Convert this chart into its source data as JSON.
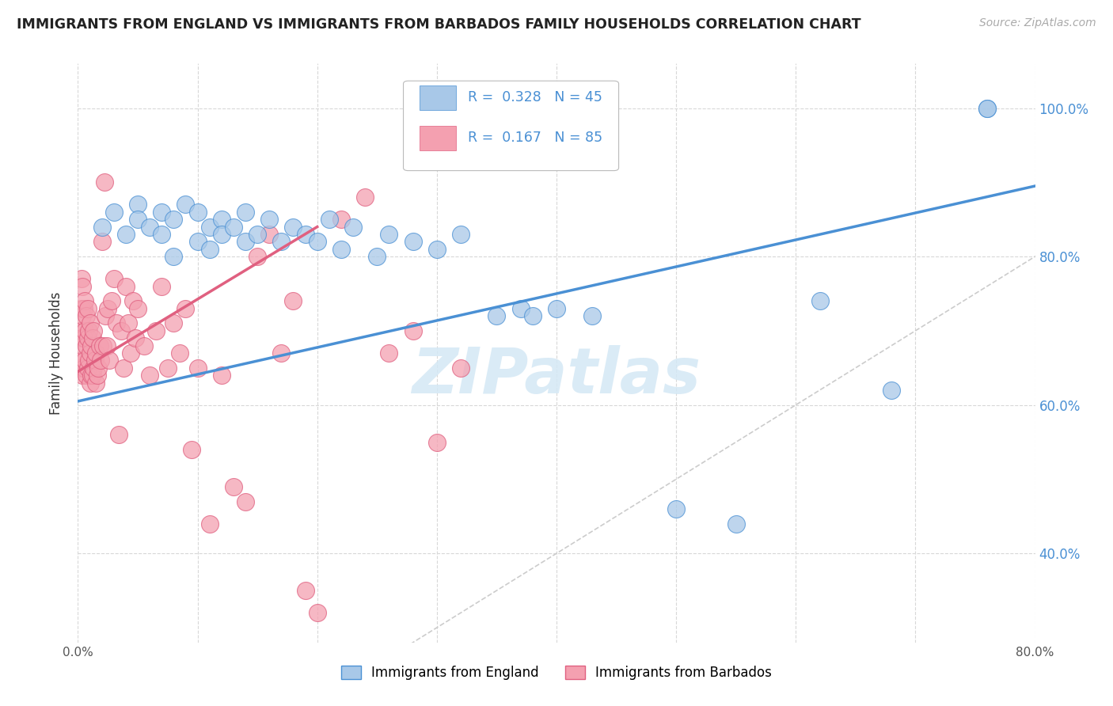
{
  "title": "IMMIGRANTS FROM ENGLAND VS IMMIGRANTS FROM BARBADOS FAMILY HOUSEHOLDS CORRELATION CHART",
  "source": "Source: ZipAtlas.com",
  "ylabel": "Family Households",
  "legend_bottom": [
    "Immigrants from England",
    "Immigrants from Barbados"
  ],
  "england_R": "0.328",
  "england_N": "45",
  "barbados_R": "0.167",
  "barbados_N": "85",
  "xlim": [
    0.0,
    0.8
  ],
  "ylim": [
    0.28,
    1.06
  ],
  "england_color": "#a8c8e8",
  "barbados_color": "#f4a0b0",
  "england_line_color": "#4a90d4",
  "barbados_line_color": "#e06080",
  "diagonal_color": "#cccccc",
  "background_color": "#ffffff",
  "grid_color": "#d8d8d8",
  "watermark_color": "#d4e8f5",
  "england_x": [
    0.02,
    0.03,
    0.04,
    0.05,
    0.05,
    0.06,
    0.07,
    0.07,
    0.08,
    0.08,
    0.09,
    0.1,
    0.1,
    0.11,
    0.11,
    0.12,
    0.12,
    0.13,
    0.14,
    0.14,
    0.15,
    0.16,
    0.17,
    0.18,
    0.19,
    0.2,
    0.21,
    0.22,
    0.23,
    0.25,
    0.26,
    0.28,
    0.3,
    0.32,
    0.35,
    0.37,
    0.38,
    0.4,
    0.43,
    0.5,
    0.55,
    0.62,
    0.68,
    0.76,
    0.76
  ],
  "england_y": [
    0.84,
    0.86,
    0.83,
    0.87,
    0.85,
    0.84,
    0.86,
    0.83,
    0.85,
    0.8,
    0.87,
    0.86,
    0.82,
    0.84,
    0.81,
    0.85,
    0.83,
    0.84,
    0.82,
    0.86,
    0.83,
    0.85,
    0.82,
    0.84,
    0.83,
    0.82,
    0.85,
    0.81,
    0.84,
    0.8,
    0.83,
    0.82,
    0.81,
    0.83,
    0.72,
    0.73,
    0.72,
    0.73,
    0.72,
    0.46,
    0.44,
    0.74,
    0.62,
    1.0,
    1.0
  ],
  "barbados_x": [
    0.002,
    0.002,
    0.003,
    0.003,
    0.003,
    0.003,
    0.004,
    0.004,
    0.004,
    0.004,
    0.005,
    0.005,
    0.005,
    0.006,
    0.006,
    0.006,
    0.007,
    0.007,
    0.007,
    0.008,
    0.008,
    0.008,
    0.009,
    0.009,
    0.01,
    0.01,
    0.01,
    0.011,
    0.011,
    0.012,
    0.012,
    0.013,
    0.013,
    0.014,
    0.015,
    0.015,
    0.016,
    0.017,
    0.018,
    0.019,
    0.02,
    0.021,
    0.022,
    0.023,
    0.024,
    0.025,
    0.026,
    0.028,
    0.03,
    0.032,
    0.034,
    0.036,
    0.038,
    0.04,
    0.042,
    0.044,
    0.046,
    0.048,
    0.05,
    0.055,
    0.06,
    0.065,
    0.07,
    0.075,
    0.08,
    0.085,
    0.09,
    0.095,
    0.1,
    0.11,
    0.12,
    0.13,
    0.14,
    0.15,
    0.16,
    0.17,
    0.18,
    0.19,
    0.2,
    0.22,
    0.24,
    0.26,
    0.28,
    0.3,
    0.32
  ],
  "barbados_y": [
    0.65,
    0.7,
    0.66,
    0.69,
    0.73,
    0.77,
    0.64,
    0.68,
    0.72,
    0.76,
    0.65,
    0.69,
    0.73,
    0.66,
    0.7,
    0.74,
    0.64,
    0.68,
    0.72,
    0.65,
    0.69,
    0.73,
    0.66,
    0.7,
    0.63,
    0.67,
    0.71,
    0.64,
    0.68,
    0.64,
    0.69,
    0.65,
    0.7,
    0.66,
    0.63,
    0.67,
    0.64,
    0.65,
    0.68,
    0.66,
    0.82,
    0.68,
    0.9,
    0.72,
    0.68,
    0.73,
    0.66,
    0.74,
    0.77,
    0.71,
    0.56,
    0.7,
    0.65,
    0.76,
    0.71,
    0.67,
    0.74,
    0.69,
    0.73,
    0.68,
    0.64,
    0.7,
    0.76,
    0.65,
    0.71,
    0.67,
    0.73,
    0.54,
    0.65,
    0.44,
    0.64,
    0.49,
    0.47,
    0.8,
    0.83,
    0.67,
    0.74,
    0.35,
    0.32,
    0.85,
    0.88,
    0.67,
    0.7,
    0.55,
    0.65
  ],
  "eng_line_x0": 0.0,
  "eng_line_x1": 0.8,
  "eng_line_y0": 0.605,
  "eng_line_y1": 0.895,
  "bar_line_x0": 0.0,
  "bar_line_x1": 0.2,
  "bar_line_y0": 0.645,
  "bar_line_y1": 0.84
}
